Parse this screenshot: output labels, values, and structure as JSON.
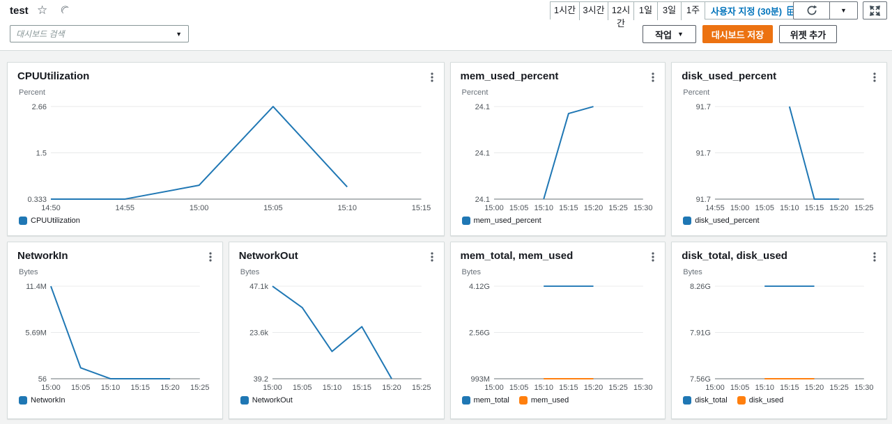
{
  "header": {
    "dashboard_name": "test",
    "search_placeholder": "대시보드 검색",
    "time_ranges": [
      "1시간",
      "3시간",
      "12시간",
      "1일",
      "3일",
      "1주"
    ],
    "custom_range_label": "사용자 지정 (30분)",
    "actions_button": "작업",
    "save_button": "대시보드 저장",
    "add_widget_button": "위젯 추가"
  },
  "colors": {
    "accent_orange": "#ec7211",
    "link_blue": "#0073bb",
    "series_blue": "#1f77b4",
    "series_orange": "#ff7f0e"
  },
  "chart_data": [
    {
      "type": "line",
      "title": "CPUUtilization",
      "unit": "Percent",
      "y_ticks": [
        "2.66",
        "1.5",
        "0.333"
      ],
      "ylim": [
        0.333,
        2.66
      ],
      "x_ticks": [
        "14:50",
        "14:55",
        "15:00",
        "15:05",
        "15:10",
        "15:15"
      ],
      "series": [
        {
          "name": "CPUUtilization",
          "color": "#1f77b4",
          "points": [
            [
              "14:50",
              0.333
            ],
            [
              "14:55",
              0.333
            ],
            [
              "15:00",
              0.68
            ],
            [
              "15:05",
              2.66
            ],
            [
              "15:10",
              0.64
            ]
          ]
        }
      ]
    },
    {
      "type": "line",
      "title": "mem_used_percent",
      "unit": "Percent",
      "y_ticks": [
        "24.1",
        "24.1",
        "24.1"
      ],
      "ylim": [
        24.08,
        24.1
      ],
      "x_ticks": [
        "15:00",
        "15:05",
        "15:10",
        "15:15",
        "15:20",
        "15:25",
        "15:30"
      ],
      "series": [
        {
          "name": "mem_used_percent",
          "color": "#1f77b4",
          "points": [
            [
              "15:10",
              24.08
            ],
            [
              "15:15",
              24.0985
            ],
            [
              "15:20",
              24.1
            ]
          ]
        }
      ]
    },
    {
      "type": "line",
      "title": "disk_used_percent",
      "unit": "Percent",
      "y_ticks": [
        "91.7",
        "91.7",
        "91.7"
      ],
      "ylim": [
        91.68,
        91.7
      ],
      "x_ticks": [
        "14:55",
        "15:00",
        "15:05",
        "15:10",
        "15:15",
        "15:20",
        "15:25"
      ],
      "series": [
        {
          "name": "disk_used_percent",
          "color": "#1f77b4",
          "points": [
            [
              "15:10",
              91.7
            ],
            [
              "15:15",
              91.68
            ],
            [
              "15:20",
              91.68
            ]
          ]
        }
      ]
    },
    {
      "type": "line",
      "title": "NetworkIn",
      "unit": "Bytes",
      "y_ticks": [
        "11.4M",
        "5.69M",
        "56"
      ],
      "ylim": [
        56,
        11400000
      ],
      "x_ticks": [
        "15:00",
        "15:05",
        "15:10",
        "15:15",
        "15:20",
        "15:25"
      ],
      "series": [
        {
          "name": "NetworkIn",
          "color": "#1f77b4",
          "points": [
            [
              "15:00",
              11400000
            ],
            [
              "15:05",
              1350000
            ],
            [
              "15:10",
              56
            ],
            [
              "15:15",
              56
            ],
            [
              "15:20",
              56
            ]
          ]
        }
      ]
    },
    {
      "type": "line",
      "title": "NetworkOut",
      "unit": "Bytes",
      "y_ticks": [
        "47.1k",
        "23.6k",
        "39.2"
      ],
      "ylim": [
        39.2,
        47100
      ],
      "x_ticks": [
        "15:00",
        "15:05",
        "15:10",
        "15:15",
        "15:20",
        "15:25"
      ],
      "series": [
        {
          "name": "NetworkOut",
          "color": "#1f77b4",
          "points": [
            [
              "15:00",
              47100
            ],
            [
              "15:05",
              36200
            ],
            [
              "15:10",
              13900
            ],
            [
              "15:15",
              26500
            ],
            [
              "15:20",
              39.2
            ]
          ]
        }
      ]
    },
    {
      "type": "line",
      "title": "mem_total, mem_used",
      "unit": "Bytes",
      "y_ticks": [
        "4.12G",
        "2.56G",
        "993M"
      ],
      "ylim": [
        993000000,
        4120000000
      ],
      "x_ticks": [
        "15:00",
        "15:05",
        "15:10",
        "15:15",
        "15:20",
        "15:25",
        "15:30"
      ],
      "series": [
        {
          "name": "mem_total",
          "color": "#1f77b4",
          "points": [
            [
              "15:10",
              4120000000
            ],
            [
              "15:15",
              4120000000
            ],
            [
              "15:20",
              4120000000
            ]
          ]
        },
        {
          "name": "mem_used",
          "color": "#ff7f0e",
          "points": [
            [
              "15:10",
              993000000
            ],
            [
              "15:15",
              993000000
            ],
            [
              "15:20",
              993000000
            ]
          ]
        }
      ]
    },
    {
      "type": "line",
      "title": "disk_total, disk_used",
      "unit": "Bytes",
      "y_ticks": [
        "8.26G",
        "7.91G",
        "7.56G"
      ],
      "ylim": [
        7560000000,
        8260000000
      ],
      "x_ticks": [
        "15:00",
        "15:05",
        "15:10",
        "15:15",
        "15:20",
        "15:25",
        "15:30"
      ],
      "series": [
        {
          "name": "disk_total",
          "color": "#1f77b4",
          "points": [
            [
              "15:10",
              8260000000
            ],
            [
              "15:15",
              8260000000
            ],
            [
              "15:20",
              8260000000
            ]
          ]
        },
        {
          "name": "disk_used",
          "color": "#ff7f0e",
          "points": [
            [
              "15:10",
              7560000000
            ],
            [
              "15:15",
              7560000000
            ],
            [
              "15:20",
              7560000000
            ]
          ]
        }
      ]
    }
  ]
}
